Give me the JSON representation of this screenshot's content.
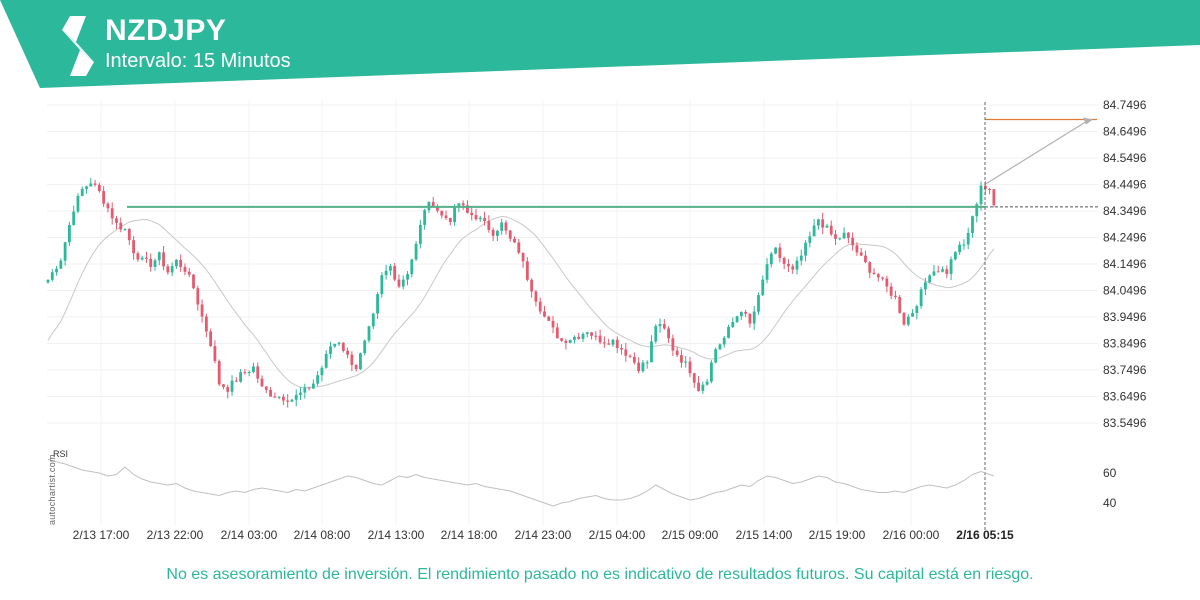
{
  "header": {
    "symbol": "NZDJPY",
    "interval_label": "Intervalo: 15 Minutos"
  },
  "watermark": "autochartist.com",
  "disclaimer": "No es asesoramiento de inversión. El rendimiento pasado no es indicativo de resultados futuros. Su capital está en riesgo.",
  "colors": {
    "brand": "#2bb89b",
    "up_candle": "#2bb89b",
    "down_candle": "#e55a6f",
    "resistance_line": "#55b08b",
    "target_line": "#e07b39",
    "moving_average": "#c8c8c8",
    "rsi_line": "#c0c0c0"
  },
  "chart_data": {
    "type": "candlestick",
    "symbol": "NZDJPY",
    "y_axis": {
      "ticks": [
        "84.7496",
        "84.6496",
        "84.5496",
        "84.4496",
        "84.3496",
        "84.2496",
        "84.1496",
        "84.0496",
        "83.9496",
        "83.8496",
        "83.7496",
        "83.6496",
        "83.5496"
      ],
      "range": [
        83.5121,
        84.7496
      ],
      "position": "right"
    },
    "x_axis": {
      "ticks": [
        "2/13 17:00",
        "2/13 22:00",
        "2/14 03:00",
        "2/14 08:00",
        "2/14 13:00",
        "2/14 18:00",
        "2/14 23:00",
        "2/15 04:00",
        "2/15 09:00",
        "2/15 14:00",
        "2/15 19:00",
        "2/16 00:00",
        "2/16 05:15"
      ],
      "highlighted_tick": "2/16 05:15"
    },
    "price_path": [
      [
        0,
        84.09
      ],
      [
        3,
        84.17
      ],
      [
        6,
        84.36
      ],
      [
        8,
        84.43
      ],
      [
        10,
        84.46
      ],
      [
        12,
        84.42
      ],
      [
        14,
        84.36
      ],
      [
        16,
        84.3
      ],
      [
        18,
        84.28
      ],
      [
        20,
        84.2
      ],
      [
        22,
        84.16
      ],
      [
        24,
        84.15
      ],
      [
        26,
        84.18
      ],
      [
        28,
        84.12
      ],
      [
        30,
        84.16
      ],
      [
        32,
        84.13
      ],
      [
        34,
        84.06
      ],
      [
        36,
        83.95
      ],
      [
        38,
        83.85
      ],
      [
        40,
        83.7
      ],
      [
        42,
        83.68
      ],
      [
        45,
        83.73
      ],
      [
        48,
        83.76
      ],
      [
        50,
        83.68
      ],
      [
        52,
        83.66
      ],
      [
        54,
        83.65
      ],
      [
        57,
        83.64
      ],
      [
        60,
        83.67
      ],
      [
        62,
        83.7
      ],
      [
        64,
        83.76
      ],
      [
        66,
        83.84
      ],
      [
        68,
        83.86
      ],
      [
        70,
        83.8
      ],
      [
        72,
        83.76
      ],
      [
        74,
        83.85
      ],
      [
        76,
        83.95
      ],
      [
        78,
        84.1
      ],
      [
        80,
        84.14
      ],
      [
        82,
        84.07
      ],
      [
        84,
        84.12
      ],
      [
        86,
        84.22
      ],
      [
        88,
        84.36
      ],
      [
        90,
        84.38
      ],
      [
        92,
        84.33
      ],
      [
        94,
        84.32
      ],
      [
        96,
        84.38
      ],
      [
        98,
        84.34
      ],
      [
        100,
        84.33
      ],
      [
        102,
        84.3
      ],
      [
        104,
        84.27
      ],
      [
        106,
        84.3
      ],
      [
        108,
        84.24
      ],
      [
        110,
        84.2
      ],
      [
        112,
        84.1
      ],
      [
        114,
        84.02
      ],
      [
        116,
        83.95
      ],
      [
        118,
        83.9
      ],
      [
        120,
        83.86
      ],
      [
        122,
        83.87
      ],
      [
        124,
        83.88
      ],
      [
        126,
        83.9
      ],
      [
        128,
        83.87
      ],
      [
        130,
        83.86
      ],
      [
        132,
        83.86
      ],
      [
        134,
        83.83
      ],
      [
        136,
        83.8
      ],
      [
        138,
        83.76
      ],
      [
        140,
        83.78
      ],
      [
        142,
        83.92
      ],
      [
        144,
        83.9
      ],
      [
        146,
        83.83
      ],
      [
        148,
        83.79
      ],
      [
        150,
        83.75
      ],
      [
        152,
        83.68
      ],
      [
        154,
        83.72
      ],
      [
        156,
        83.83
      ],
      [
        158,
        83.87
      ],
      [
        160,
        83.93
      ],
      [
        162,
        83.98
      ],
      [
        164,
        83.92
      ],
      [
        166,
        84.02
      ],
      [
        168,
        84.15
      ],
      [
        170,
        84.2
      ],
      [
        172,
        84.15
      ],
      [
        174,
        84.12
      ],
      [
        176,
        84.18
      ],
      [
        178,
        84.25
      ],
      [
        180,
        84.32
      ],
      [
        182,
        84.28
      ],
      [
        184,
        84.24
      ],
      [
        186,
        84.26
      ],
      [
        188,
        84.22
      ],
      [
        190,
        84.17
      ],
      [
        192,
        84.13
      ],
      [
        194,
        84.1
      ],
      [
        196,
        84.06
      ],
      [
        198,
        84.02
      ],
      [
        200,
        83.93
      ],
      [
        202,
        83.97
      ],
      [
        204,
        84.04
      ],
      [
        206,
        84.12
      ],
      [
        208,
        84.13
      ],
      [
        210,
        84.12
      ],
      [
        212,
        84.2
      ],
      [
        214,
        84.22
      ],
      [
        216,
        84.32
      ],
      [
        218,
        84.45
      ],
      [
        220,
        84.42
      ],
      [
        221,
        84.37
      ]
    ],
    "resistance_level": 84.365,
    "target_level": 84.695,
    "last_price": 84.365,
    "rsi": {
      "label": "RSI",
      "ticks": [
        60,
        40
      ],
      "range": [
        33,
        76
      ],
      "values": [
        [
          0,
          69
        ],
        [
          4,
          66
        ],
        [
          8,
          62
        ],
        [
          12,
          60
        ],
        [
          14,
          58
        ],
        [
          16,
          59
        ],
        [
          18,
          64
        ],
        [
          20,
          59
        ],
        [
          22,
          56
        ],
        [
          24,
          54
        ],
        [
          26,
          53
        ],
        [
          28,
          52
        ],
        [
          30,
          53
        ],
        [
          32,
          50
        ],
        [
          34,
          48
        ],
        [
          36,
          47
        ],
        [
          38,
          46
        ],
        [
          40,
          45
        ],
        [
          42,
          47
        ],
        [
          44,
          48
        ],
        [
          46,
          47
        ],
        [
          48,
          49
        ],
        [
          50,
          50
        ],
        [
          52,
          49
        ],
        [
          54,
          48
        ],
        [
          56,
          47
        ],
        [
          58,
          49
        ],
        [
          60,
          48
        ],
        [
          62,
          50
        ],
        [
          64,
          52
        ],
        [
          66,
          54
        ],
        [
          68,
          56
        ],
        [
          70,
          58
        ],
        [
          72,
          57
        ],
        [
          74,
          55
        ],
        [
          76,
          53
        ],
        [
          78,
          52
        ],
        [
          80,
          55
        ],
        [
          82,
          58
        ],
        [
          84,
          57
        ],
        [
          86,
          59
        ],
        [
          88,
          57
        ],
        [
          90,
          56
        ],
        [
          92,
          55
        ],
        [
          94,
          54
        ],
        [
          96,
          53
        ],
        [
          98,
          52
        ],
        [
          100,
          53
        ],
        [
          102,
          51
        ],
        [
          104,
          50
        ],
        [
          106,
          49
        ],
        [
          108,
          48
        ],
        [
          110,
          46
        ],
        [
          112,
          44
        ],
        [
          114,
          42
        ],
        [
          116,
          40
        ],
        [
          118,
          38
        ],
        [
          120,
          40
        ],
        [
          122,
          41
        ],
        [
          124,
          43
        ],
        [
          126,
          44
        ],
        [
          128,
          45
        ],
        [
          130,
          43
        ],
        [
          132,
          42
        ],
        [
          134,
          42
        ],
        [
          136,
          43
        ],
        [
          138,
          45
        ],
        [
          140,
          48
        ],
        [
          142,
          52
        ],
        [
          144,
          49
        ],
        [
          146,
          46
        ],
        [
          148,
          44
        ],
        [
          150,
          42
        ],
        [
          152,
          43
        ],
        [
          154,
          45
        ],
        [
          156,
          47
        ],
        [
          158,
          48
        ],
        [
          160,
          50
        ],
        [
          162,
          52
        ],
        [
          164,
          51
        ],
        [
          166,
          55
        ],
        [
          168,
          58
        ],
        [
          170,
          57
        ],
        [
          172,
          55
        ],
        [
          174,
          53
        ],
        [
          176,
          54
        ],
        [
          178,
          56
        ],
        [
          180,
          58
        ],
        [
          182,
          57
        ],
        [
          184,
          54
        ],
        [
          186,
          53
        ],
        [
          188,
          51
        ],
        [
          190,
          49
        ],
        [
          192,
          48
        ],
        [
          194,
          47
        ],
        [
          196,
          47
        ],
        [
          198,
          48
        ],
        [
          200,
          47
        ],
        [
          202,
          49
        ],
        [
          204,
          51
        ],
        [
          206,
          52
        ],
        [
          208,
          51
        ],
        [
          210,
          50
        ],
        [
          212,
          52
        ],
        [
          214,
          55
        ],
        [
          216,
          59
        ],
        [
          218,
          61
        ],
        [
          220,
          59
        ],
        [
          221,
          58
        ]
      ]
    }
  }
}
